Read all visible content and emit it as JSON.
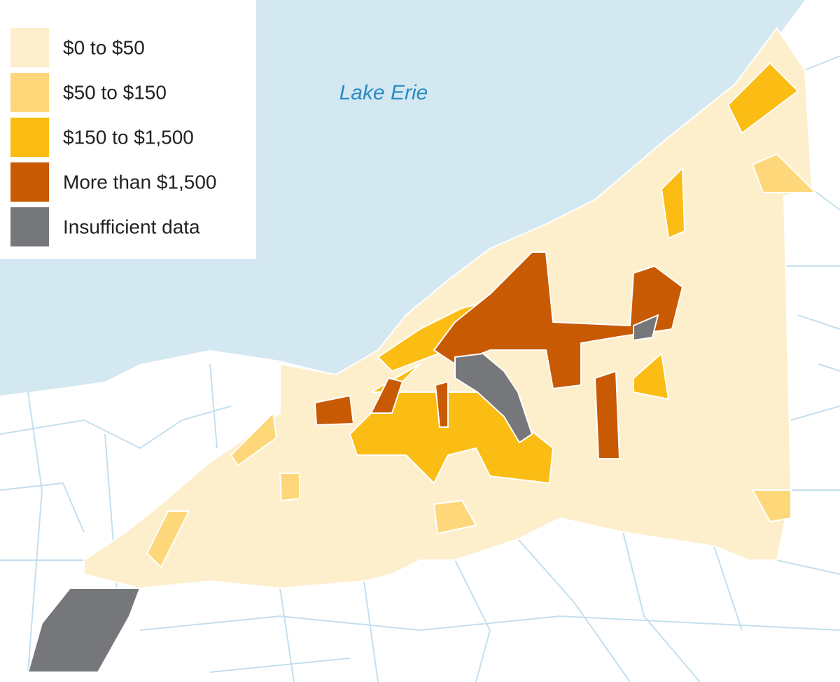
{
  "map": {
    "water_label": "Lake Erie",
    "legend": [
      {
        "label": "$0 to $50",
        "color": "#fdefcb"
      },
      {
        "label": "$50 to $150",
        "color": "#fdd77a"
      },
      {
        "label": "$150 to $1,500",
        "color": "#fbbd14"
      },
      {
        "label": "More than $1,500",
        "color": "#c85a04"
      },
      {
        "label": "Insufficient data",
        "color": "#76777b"
      }
    ]
  }
}
